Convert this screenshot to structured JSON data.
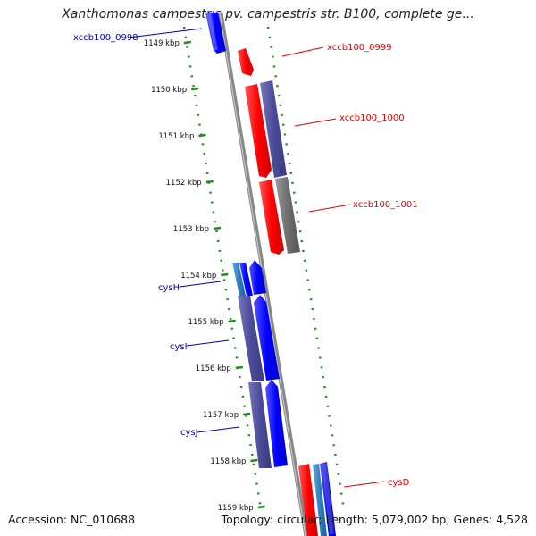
{
  "title": "Xanthomonas campestris pv. campestris str. B100, complete ge...",
  "footer": {
    "accession": "Accession: NC_010688",
    "summary": "Topology: circular; Length: 5,079,002 bp; Genes: 4,528"
  },
  "colors": {
    "forward_gene": "#ff0000",
    "reverse_gene": "#0000ff",
    "tick": "#228b22",
    "backbone": "#888888",
    "label_forward": "#dd0000",
    "label_reverse": "#0000aa"
  },
  "ticks": [
    {
      "label": "1149 kbp"
    },
    {
      "label": "1150 kbp"
    },
    {
      "label": "1151 kbp"
    },
    {
      "label": "1152 kbp"
    },
    {
      "label": "1153 kbp"
    },
    {
      "label": "1154 kbp"
    },
    {
      "label": "1155 kbp"
    },
    {
      "label": "1156 kbp"
    },
    {
      "label": "1157 kbp"
    },
    {
      "label": "1158 kbp"
    },
    {
      "label": "1159 kbp"
    }
  ],
  "genes": [
    {
      "label": "xccb100_0998",
      "strand": "reverse"
    },
    {
      "label": "xccb100_0999",
      "strand": "forward"
    },
    {
      "label": "xccb100_1000",
      "strand": "forward"
    },
    {
      "label": "xccb100_1001",
      "strand": "forward"
    },
    {
      "label": "cysH",
      "strand": "reverse"
    },
    {
      "label": "cysI",
      "strand": "reverse"
    },
    {
      "label": "cysJ",
      "strand": "reverse"
    },
    {
      "label": "cysD",
      "strand": "forward"
    }
  ]
}
